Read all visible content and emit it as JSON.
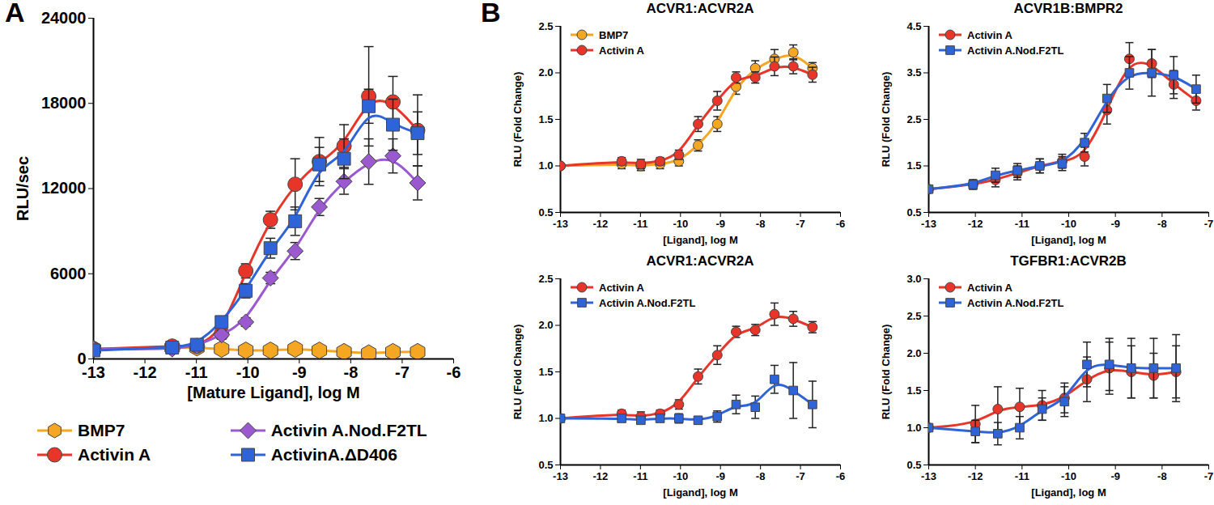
{
  "chart_data": [
    {
      "type": "line",
      "panel_label": "A",
      "x_label": "[Mature Ligand], log M",
      "y_label": "RLU/sec",
      "xlim": [
        -13,
        -6
      ],
      "xticks": [
        -13,
        -12,
        -11,
        -10,
        -9,
        -8,
        -7,
        -6
      ],
      "ylim": [
        0,
        24000
      ],
      "yticks": [
        0,
        6000,
        12000,
        18000,
        24000
      ],
      "legend": "bottom",
      "x": [
        -13,
        -11.47,
        -10.99,
        -10.51,
        -10.04,
        -9.56,
        -9.08,
        -8.61,
        -8.13,
        -7.65,
        -7.18,
        -6.7
      ],
      "series": [
        {
          "name": "BMP7",
          "color": "#f5a623",
          "marker": "hexagon",
          "values": [
            700,
            800,
            800,
            700,
            600,
            600,
            700,
            600,
            500,
            400,
            500,
            500
          ],
          "errors": [
            0,
            0,
            0,
            0,
            0,
            0,
            0,
            0,
            0,
            0,
            0,
            0
          ]
        },
        {
          "name": "Activin A",
          "color": "#e8352a",
          "marker": "circle",
          "values": [
            700,
            900,
            900,
            1800,
            6200,
            9800,
            12300,
            13900,
            15000,
            18500,
            18100,
            16100
          ],
          "errors": [
            0,
            200,
            300,
            300,
            500,
            600,
            1800,
            1700,
            1500,
            3500,
            1800,
            2500
          ]
        },
        {
          "name": "Activin A.Nod.F2TL",
          "color": "#9b59d0",
          "marker": "diamond",
          "values": [
            700,
            700,
            900,
            1700,
            2600,
            5700,
            7600,
            10700,
            12500,
            13900,
            14300,
            12400
          ],
          "errors": [
            0,
            200,
            200,
            300,
            300,
            400,
            600,
            600,
            900,
            1600,
            1200,
            1200
          ]
        },
        {
          "name": "ActivinA.ΔD406",
          "color": "#2f64d8",
          "marker": "square",
          "values": [
            600,
            800,
            1000,
            2600,
            4800,
            7800,
            9700,
            13700,
            14100,
            17800,
            16500,
            15900
          ],
          "errors": [
            0,
            200,
            300,
            300,
            500,
            700,
            1000,
            1200,
            1400,
            1200,
            1800,
            1500
          ]
        }
      ]
    },
    {
      "type": "line",
      "panel_label": "B",
      "title": "ACVR1:ACVR2A",
      "x_label": "[Ligand], log M",
      "y_label": "RLU (Fold Change)",
      "xlim": [
        -13,
        -6
      ],
      "xticks": [
        -13,
        -12,
        -11,
        -10,
        -9,
        -8,
        -7,
        -6
      ],
      "ylim": [
        0.5,
        2.5
      ],
      "yticks": [
        0.5,
        {
          "value": 1,
          "label": "1.0"
        },
        1.5,
        {
          "value": 2,
          "label": "2.0"
        },
        2.5
      ],
      "legend": "top-left",
      "x": [
        -13,
        -11.47,
        -10.99,
        -10.51,
        -10.04,
        -9.56,
        -9.08,
        -8.61,
        -8.13,
        -7.65,
        -7.18,
        -6.7
      ],
      "series": [
        {
          "name": "BMP7",
          "color": "#f5a623",
          "marker": "circle",
          "values": [
            1.0,
            1.02,
            1.0,
            1.02,
            1.05,
            1.22,
            1.45,
            1.85,
            2.05,
            2.15,
            2.22,
            2.05
          ],
          "errors": [
            0,
            0.05,
            0.05,
            0.05,
            0.05,
            0.06,
            0.08,
            0.08,
            0.08,
            0.1,
            0.08,
            0.06
          ]
        },
        {
          "name": "Activin A",
          "color": "#e8352a",
          "marker": "circle",
          "values": [
            1.0,
            1.05,
            1.02,
            1.05,
            1.12,
            1.45,
            1.7,
            1.95,
            1.95,
            2.07,
            2.07,
            1.98
          ],
          "errors": [
            0,
            0.04,
            0.05,
            0.04,
            0.05,
            0.08,
            0.1,
            0.06,
            0.06,
            0.1,
            0.08,
            0.08
          ]
        }
      ]
    },
    {
      "type": "line",
      "title": "ACVR1B:BMPR2",
      "x_label": "[Ligand], log M",
      "y_label": "RLU (Fold Change)",
      "xlim": [
        -13,
        -7
      ],
      "xticks": [
        -13,
        -12,
        -11,
        -10,
        -9,
        -8,
        -7
      ],
      "ylim": [
        0.5,
        4.5
      ],
      "yticks": [
        0.5,
        1.5,
        2.5,
        3.5,
        4.5
      ],
      "legend": "top-left",
      "x": [
        -13,
        -12.05,
        -11.57,
        -11.1,
        -10.62,
        -10.14,
        -9.66,
        -9.18,
        -8.7,
        -8.22,
        -7.75,
        -7.27
      ],
      "series": [
        {
          "name": "Activin A",
          "color": "#e8352a",
          "marker": "circle",
          "values": [
            1.0,
            1.1,
            1.2,
            1.35,
            1.5,
            1.6,
            1.7,
            2.7,
            3.8,
            3.7,
            3.25,
            2.9
          ],
          "errors": [
            0,
            0.1,
            0.15,
            0.15,
            0.15,
            0.15,
            0.2,
            0.3,
            0.35,
            0.3,
            0.3,
            0.2
          ]
        },
        {
          "name": "Activin A.Nod.F2TL",
          "color": "#2f64d8",
          "marker": "square",
          "values": [
            1.0,
            1.1,
            1.3,
            1.4,
            1.5,
            1.55,
            2.0,
            2.95,
            3.5,
            3.5,
            3.45,
            3.15
          ],
          "errors": [
            0,
            0.1,
            0.15,
            0.15,
            0.15,
            0.15,
            0.2,
            0.3,
            0.35,
            0.5,
            0.4,
            0.3
          ]
        }
      ]
    },
    {
      "type": "line",
      "title": "ACVR1:ACVR2A",
      "x_label": "[Ligand], log M",
      "y_label": "RLU (Fold Change)",
      "xlim": [
        -13,
        -6
      ],
      "xticks": [
        -13,
        -12,
        -11,
        -10,
        -9,
        -8,
        -7,
        -6
      ],
      "ylim": [
        0.5,
        2.5
      ],
      "yticks": [
        0.5,
        {
          "value": 1,
          "label": "1.0"
        },
        1.5,
        {
          "value": 2,
          "label": "2.0"
        },
        2.5
      ],
      "legend": "top-left",
      "x": [
        -13,
        -11.47,
        -10.99,
        -10.51,
        -10.04,
        -9.56,
        -9.08,
        -8.61,
        -8.13,
        -7.65,
        -7.18,
        -6.7
      ],
      "series": [
        {
          "name": "Activin A",
          "color": "#e8352a",
          "marker": "circle",
          "values": [
            1.0,
            1.05,
            1.02,
            1.05,
            1.15,
            1.45,
            1.68,
            1.93,
            1.95,
            2.12,
            2.07,
            1.98
          ],
          "errors": [
            0,
            0.04,
            0.05,
            0.04,
            0.05,
            0.08,
            0.1,
            0.06,
            0.06,
            0.12,
            0.08,
            0.06
          ]
        },
        {
          "name": "Activin A.Nod.F2TL",
          "color": "#2f64d8",
          "marker": "square",
          "values": [
            1.0,
            1.0,
            0.98,
            1.0,
            1.0,
            0.98,
            1.02,
            1.15,
            1.12,
            1.42,
            1.3,
            1.15
          ],
          "errors": [
            0,
            0.03,
            0.03,
            0.03,
            0.05,
            0.04,
            0.06,
            0.1,
            0.12,
            0.15,
            0.3,
            0.25
          ]
        }
      ]
    },
    {
      "type": "line",
      "title": "TGFBR1:ACVR2B",
      "x_label": "[Ligand], log M",
      "y_label": "RLU (Fold Change)",
      "xlim": [
        -13,
        -7
      ],
      "xticks": [
        -13,
        -12,
        -11,
        -10,
        -9,
        -8,
        -7
      ],
      "ylim": [
        0.5,
        3.0
      ],
      "yticks": [
        0.5,
        {
          "value": 1,
          "label": "1.0"
        },
        1.5,
        {
          "value": 2,
          "label": "2.0"
        },
        2.5,
        {
          "value": 3,
          "label": "3.0"
        }
      ],
      "legend": "top-left",
      "x": [
        -13,
        -12,
        -11.52,
        -11.05,
        -10.57,
        -10.09,
        -9.61,
        -9.13,
        -8.66,
        -8.18,
        -7.7
      ],
      "series": [
        {
          "name": "Activin A",
          "color": "#e8352a",
          "marker": "circle",
          "values": [
            1.0,
            1.05,
            1.25,
            1.28,
            1.3,
            1.4,
            1.65,
            1.8,
            1.75,
            1.7,
            1.75
          ],
          "errors": [
            0,
            0.25,
            0.3,
            0.25,
            0.2,
            0.2,
            0.3,
            0.35,
            0.35,
            0.3,
            0.35
          ]
        },
        {
          "name": "Activin A.Nod.F2TL",
          "color": "#2f64d8",
          "marker": "square",
          "values": [
            1.0,
            0.95,
            0.92,
            1.0,
            1.25,
            1.35,
            1.85,
            1.85,
            1.8,
            1.8,
            1.8
          ],
          "errors": [
            0,
            0.15,
            0.15,
            0.15,
            0.15,
            0.2,
            0.3,
            0.35,
            0.4,
            0.4,
            0.45
          ]
        }
      ]
    }
  ]
}
